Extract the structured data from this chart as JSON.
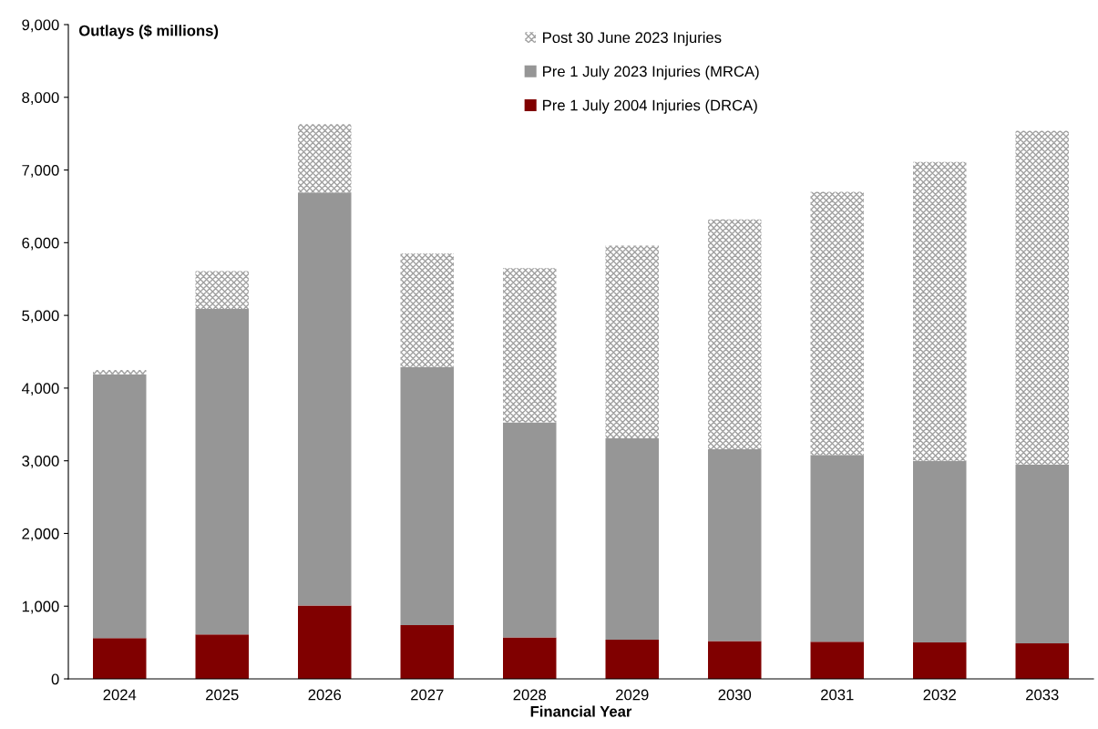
{
  "chart_data": {
    "type": "bar",
    "stacked": true,
    "ylabel": "Outlays ($ millions)",
    "xlabel": "Financial Year",
    "categories": [
      "2024",
      "2025",
      "2026",
      "2027",
      "2028",
      "2029",
      "2030",
      "2031",
      "2032",
      "2033"
    ],
    "series": [
      {
        "name": "Pre 1 July 2004 Injuries (DRCA)",
        "color": "#800000",
        "values": [
          560,
          610,
          1010,
          740,
          570,
          540,
          520,
          510,
          500,
          490
        ]
      },
      {
        "name": "Pre 1 July 2023 Injuries (MRCA)",
        "color": "#969696",
        "values": [
          3630,
          4480,
          5680,
          3550,
          2960,
          2770,
          2640,
          2570,
          2500,
          2460
        ]
      },
      {
        "name": "Post 30 June 2023 Injuries",
        "color": "#a0a0a0",
        "values": [
          60,
          520,
          940,
          1560,
          2120,
          2650,
          3160,
          3620,
          4110,
          4590
        ]
      }
    ],
    "ylim": [
      0,
      9000
    ],
    "yticks": [
      {
        "value": 0,
        "label": "0"
      },
      {
        "value": 1000,
        "label": "1,000"
      },
      {
        "value": 2000,
        "label": "2,000"
      },
      {
        "value": 3000,
        "label": "3,000"
      },
      {
        "value": 4000,
        "label": "4,000"
      },
      {
        "value": 5000,
        "label": "5,000"
      },
      {
        "value": 6000,
        "label": "6,000"
      },
      {
        "value": 7000,
        "label": "7,000"
      },
      {
        "value": 8000,
        "label": "8,000"
      },
      {
        "value": 9000,
        "label": "9,000"
      }
    ],
    "grid": false,
    "legend": "top"
  }
}
